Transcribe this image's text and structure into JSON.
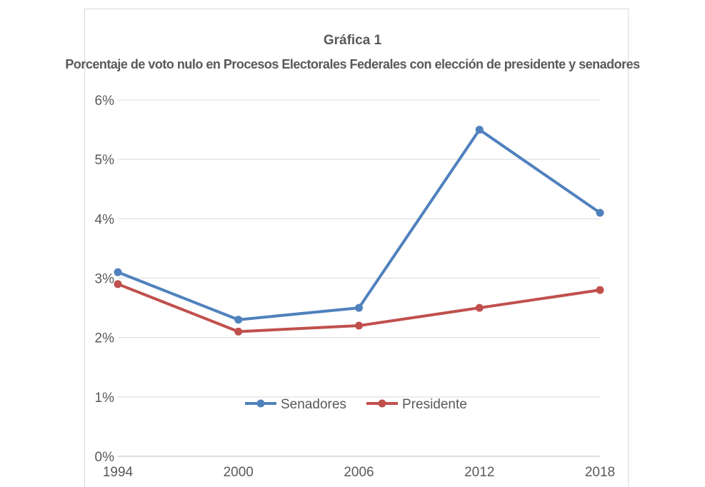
{
  "chart_data": {
    "type": "line",
    "title": "Gráfica 1",
    "subtitle": "Porcentaje de voto nulo en Procesos Electorales Federales con elección de presidente y senadores",
    "categories": [
      "1994",
      "2000",
      "2006",
      "2012",
      "2018"
    ],
    "series": [
      {
        "name": "Senadores",
        "color": "#4f81bd",
        "values": [
          3.1,
          2.3,
          2.5,
          5.5,
          4.1
        ]
      },
      {
        "name": "Presidente",
        "color": "#c0504d",
        "values": [
          2.9,
          2.1,
          2.2,
          2.5,
          2.8
        ]
      }
    ],
    "ylim": [
      0,
      6
    ],
    "yticks": [
      "0%",
      "1%",
      "2%",
      "3%",
      "4%",
      "5%",
      "6%"
    ],
    "grid": true,
    "legend": "bottom-center"
  }
}
